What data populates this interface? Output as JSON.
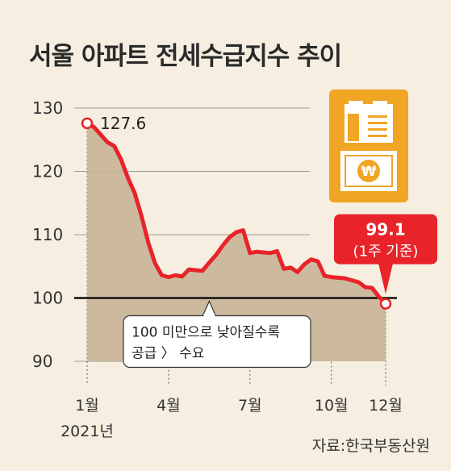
{
  "title": "서울 아파트 전세수급지수 추이",
  "source": "자료:한국부동산원",
  "chart_data": {
    "type": "area",
    "title": "서울 아파트 전세수급지수 추이",
    "ylim": [
      90,
      130
    ],
    "yticks": [
      90,
      100,
      110,
      120,
      130
    ],
    "x_range": [
      1,
      12
    ],
    "xticks": [
      {
        "value": 1,
        "label": "1월"
      },
      {
        "value": 4,
        "label": "4월"
      },
      {
        "value": 7,
        "label": "7월"
      },
      {
        "value": 10,
        "label": "10월"
      },
      {
        "value": 12,
        "label": "12월"
      }
    ],
    "year_label": "2021년",
    "reference_line": 100,
    "series": [
      {
        "x": [
          1,
          1.25,
          1.5,
          1.75,
          2,
          2.25,
          2.5,
          2.75,
          3,
          3.25,
          3.5,
          3.75,
          4,
          4.25,
          4.5,
          4.75,
          5,
          5.25,
          5.5,
          5.75,
          6,
          6.25,
          6.5,
          6.75,
          7,
          7.25,
          7.5,
          7.75,
          8,
          8.25,
          8.5,
          8.75,
          9,
          9.25,
          9.5,
          9.75,
          10,
          10.25,
          10.5,
          10.75,
          11,
          11.25,
          11.5,
          11.75,
          12
        ],
        "y": [
          127.6,
          127.0,
          125.8,
          124.6,
          124.0,
          121.9,
          119.0,
          116.6,
          113.0,
          108.8,
          105.5,
          103.6,
          103.3,
          103.6,
          103.4,
          104.5,
          104.4,
          104.3,
          105.6,
          106.8,
          108.3,
          109.6,
          110.4,
          110.7,
          107.1,
          107.3,
          107.2,
          107.1,
          107.4,
          104.6,
          104.8,
          104.1,
          105.3,
          106.1,
          105.8,
          103.5,
          103.3,
          103.2,
          103.1,
          102.8,
          102.5,
          101.7,
          101.6,
          100.2,
          99.1
        ]
      }
    ],
    "annotations": [
      {
        "x": 1,
        "y": 127.6,
        "text": "127.6"
      },
      {
        "x": 12,
        "y": 99.1,
        "text": "99.1",
        "subtext": "(1주 기준)"
      }
    ],
    "callout": {
      "x": 5.5,
      "lines": [
        "100 미만으로 낮아질수록",
        "공급 〉 수요"
      ]
    }
  },
  "colors": {
    "background": "#f6eee0",
    "line": "#e8232a",
    "area": "#c9b497",
    "grid": "#9c9c9c",
    "reference": "#111111",
    "badge": "#e8232a",
    "icon_bg": "#f0a524"
  },
  "icons": [
    "apartment-money-icon"
  ]
}
